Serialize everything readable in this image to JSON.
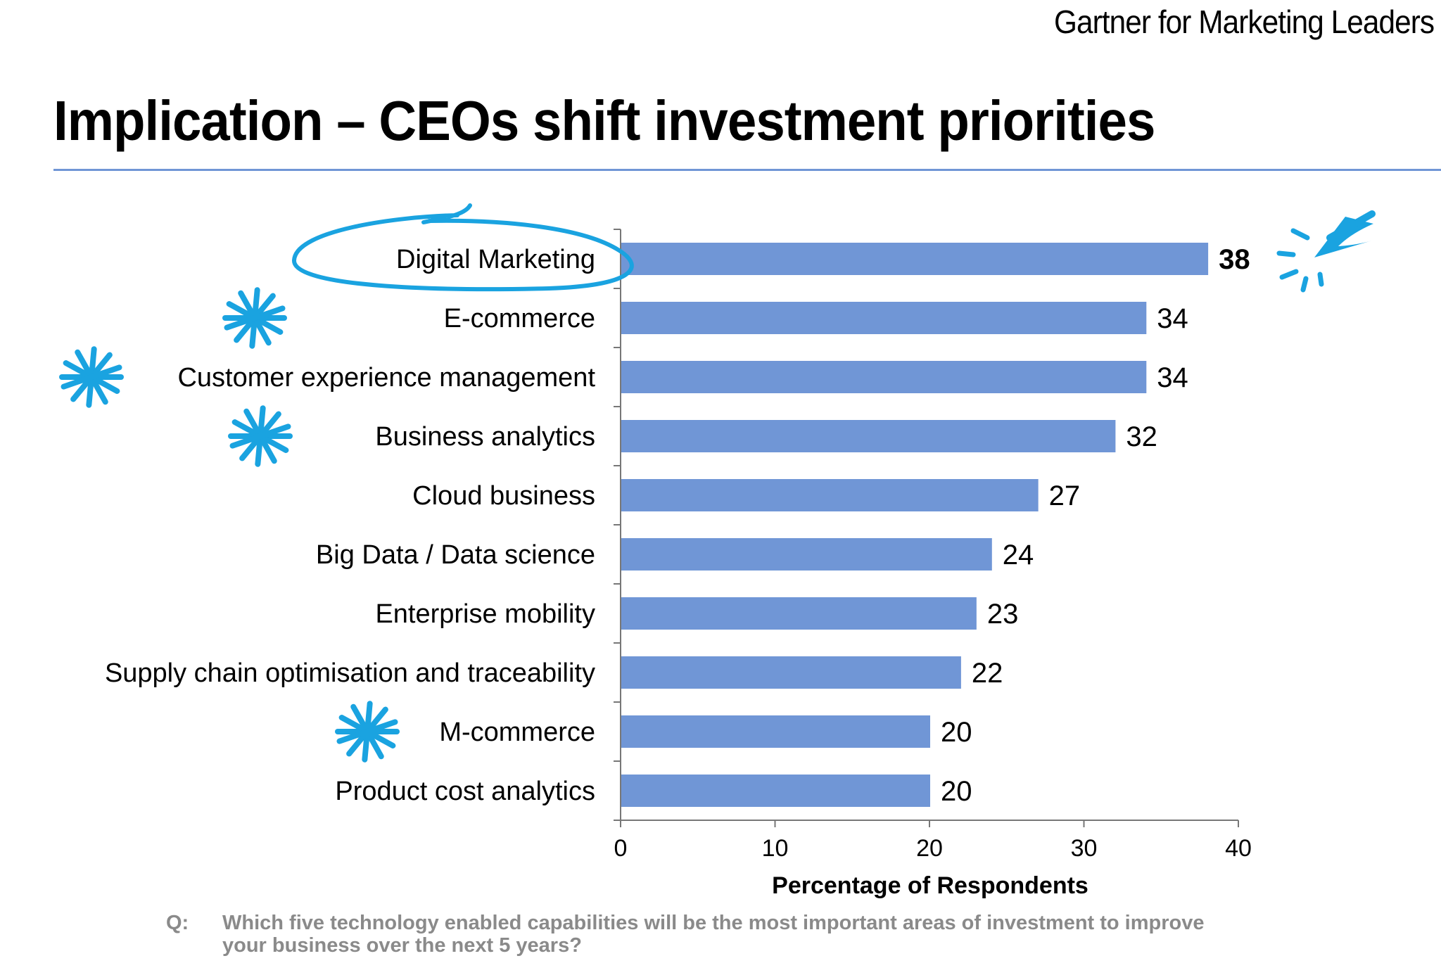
{
  "header": {
    "brand": "Gartner for Marketing Leaders",
    "title": "Implication  – CEOs shift investment priorities"
  },
  "colors": {
    "bar": "#7096d6",
    "rule": "#7096d6",
    "annotation": "#1aa3e0",
    "axis": "#777777"
  },
  "chart_data": {
    "type": "bar",
    "orientation": "horizontal",
    "categories": [
      "Digital Marketing",
      "E-commerce",
      "Customer experience management",
      "Business analytics",
      "Cloud business",
      "Big Data / Data science",
      "Enterprise mobility",
      "Supply chain optimisation and traceability",
      "M-commerce",
      "Product cost analytics"
    ],
    "values": [
      38,
      34,
      34,
      32,
      27,
      24,
      23,
      22,
      20,
      20
    ],
    "highlighted_value_index": 0,
    "title": "",
    "xlabel": "Percentage of Respondents",
    "ylabel": "",
    "xlim": [
      0,
      40
    ],
    "xticks": [
      0,
      10,
      20,
      30,
      40
    ],
    "grid": false,
    "legend": "none"
  },
  "annotations": {
    "circled_category_index": 0,
    "starred_category_indices": [
      1,
      2,
      3,
      8
    ],
    "arrow_target_index": 0
  },
  "footer": {
    "question_label": "Q:",
    "question_text": "Which five technology enabled capabilities will be the most important areas of investment to improve your business over the next 5 years?"
  }
}
